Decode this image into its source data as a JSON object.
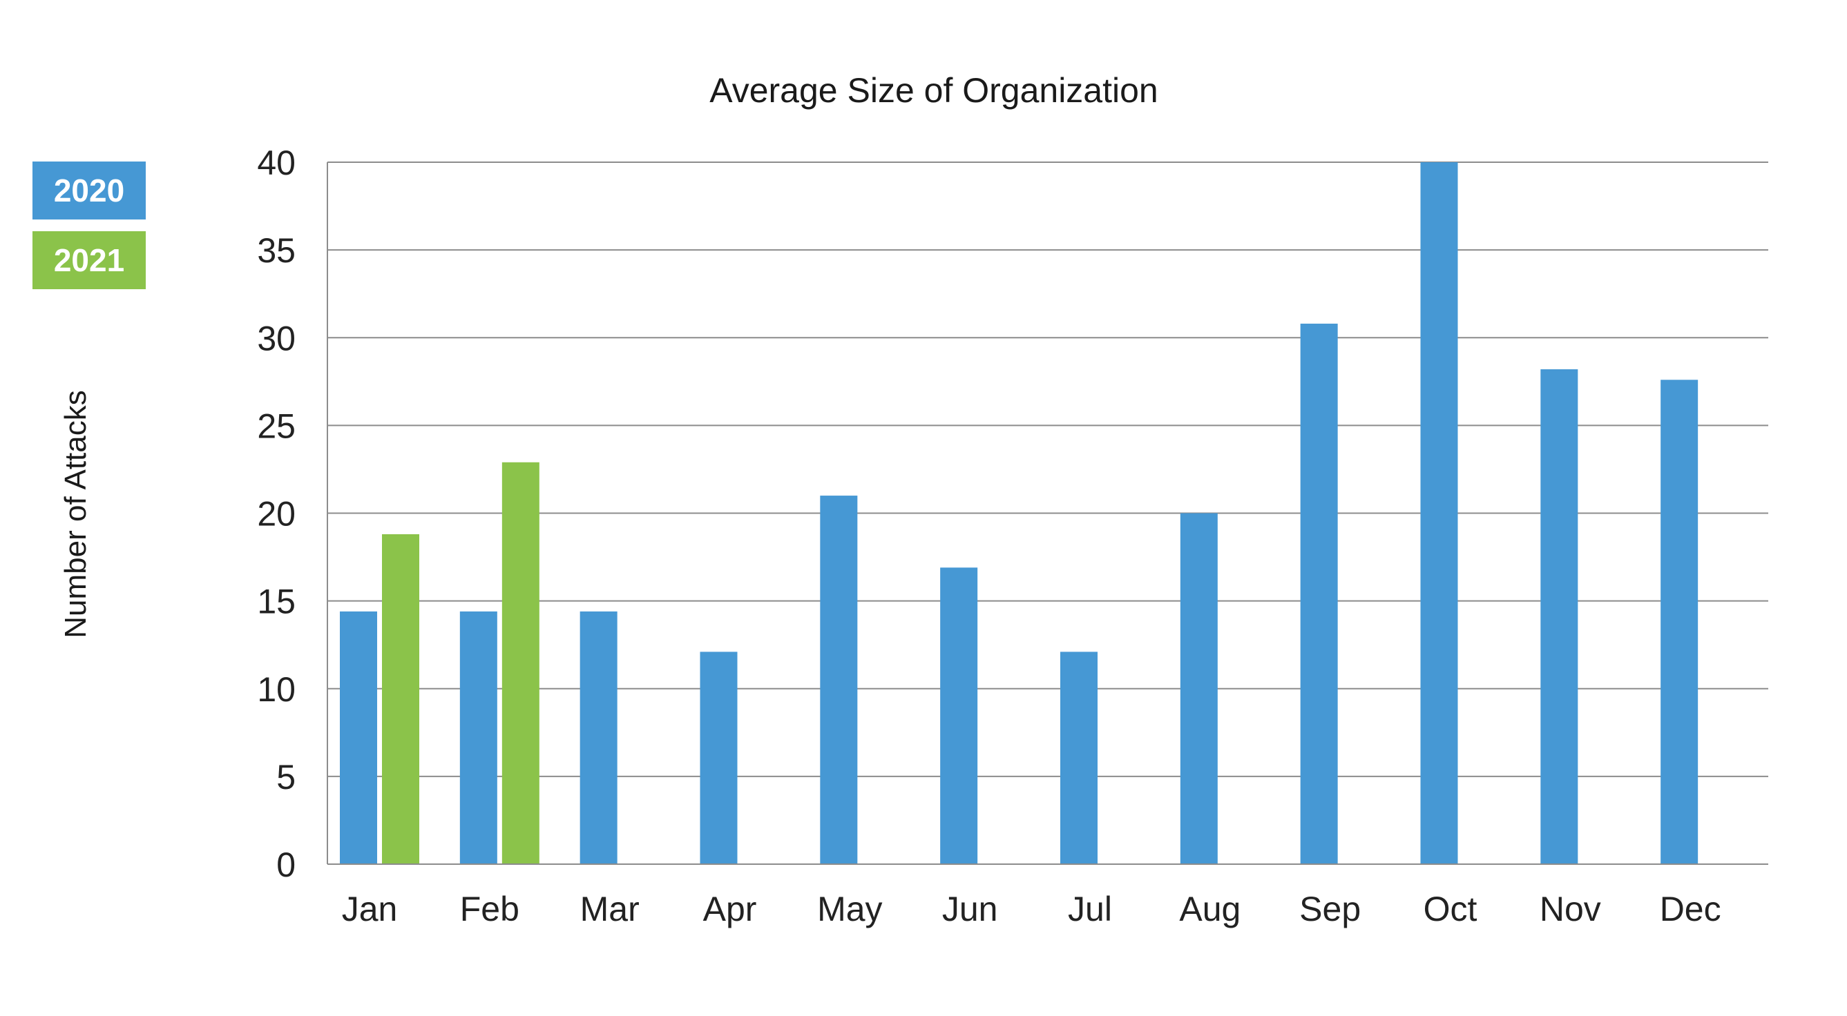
{
  "chart_data": {
    "type": "bar",
    "title": "Average Size of Organization",
    "xlabel": "",
    "ylabel": "Number of Attacks",
    "ylim": [
      0,
      40
    ],
    "yticks": [
      0,
      5,
      10,
      15,
      20,
      25,
      30,
      35,
      40
    ],
    "categories": [
      "Jan",
      "Feb",
      "Mar",
      "Apr",
      "May",
      "Jun",
      "Jul",
      "Aug",
      "Sep",
      "Oct",
      "Nov",
      "Dec"
    ],
    "series": [
      {
        "name": "2020",
        "color": "#4698d4",
        "values": [
          14.4,
          14.4,
          14.4,
          12.1,
          21.0,
          16.9,
          12.1,
          20.0,
          30.8,
          40.0,
          28.2,
          27.6
        ]
      },
      {
        "name": "2021",
        "color": "#8bc34a",
        "values": [
          18.8,
          22.9,
          null,
          null,
          null,
          null,
          null,
          null,
          null,
          null,
          null,
          null
        ]
      }
    ],
    "grid": true,
    "legend": "left"
  }
}
